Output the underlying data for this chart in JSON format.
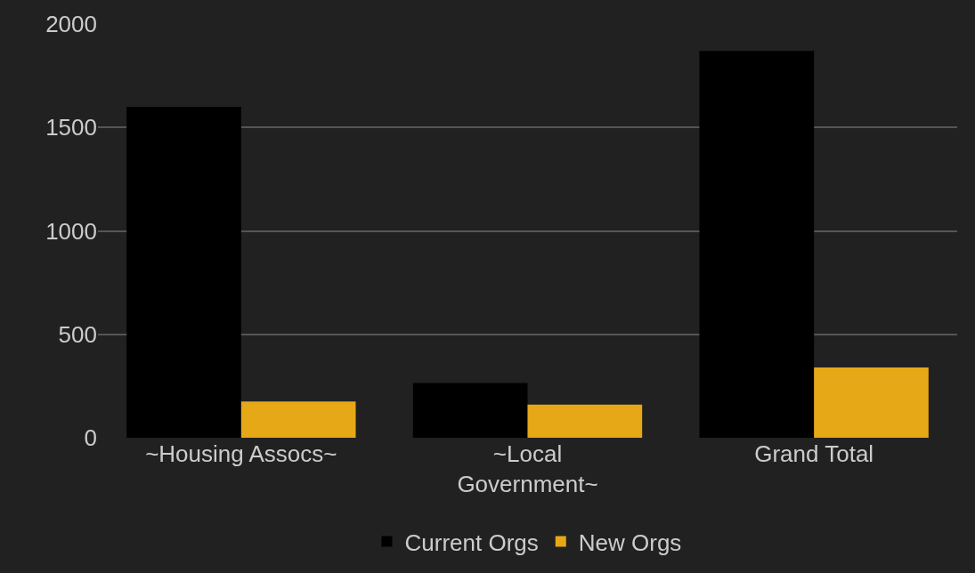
{
  "chart_data": {
    "type": "bar",
    "categories": [
      "~Housing Assocs~",
      "~Local Government~",
      "Grand Total"
    ],
    "series": [
      {
        "name": "Current Orgs",
        "color": "#000000",
        "values": [
          1600,
          265,
          1870
        ]
      },
      {
        "name": "New Orgs",
        "color": "#e6a817",
        "values": [
          175,
          160,
          340
        ]
      }
    ],
    "ylim": [
      0,
      2000
    ],
    "yticks": [
      0,
      500,
      1000,
      1500,
      2000
    ],
    "grid": "y",
    "legend": "bottom"
  }
}
